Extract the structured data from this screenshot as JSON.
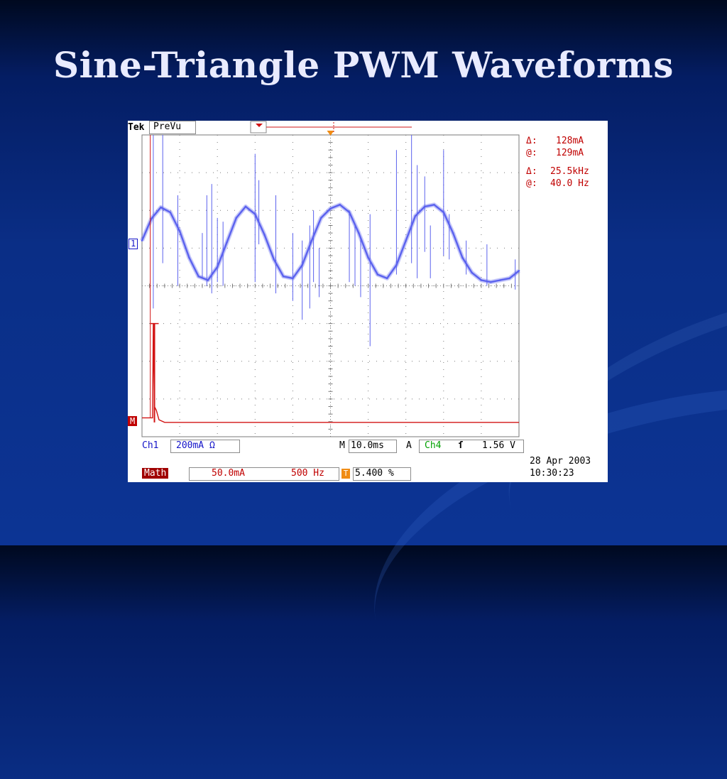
{
  "slide": {
    "title": "Sine-Triangle PWM Waveforms"
  },
  "colors": {
    "trace_ch1": "#5b62ee",
    "trace_math": "#d21414",
    "grid": "#7a7a7a",
    "text_blue": "#1414c8",
    "text_red": "#c00000",
    "text_green": "#00a000"
  },
  "scope": {
    "brand": "Tek",
    "mode": "PreVu",
    "cursor1": {
      "delta_label": "Δ:",
      "delta_value": "128mA",
      "at_label": "@:",
      "at_value": "129mA"
    },
    "cursor2": {
      "delta_label": "Δ:",
      "delta_value": "25.5kHz",
      "at_label": "@:",
      "at_value": "40.0 Hz"
    },
    "ch1_marker": "1",
    "math_marker": "M",
    "ch1_label": "Ch1",
    "ch1_scale": "200mA Ω",
    "timebase_label": "M",
    "timebase_value": "10.0ms",
    "trigger_mode": "A",
    "trigger_channel": "Ch4",
    "trigger_slope": "ſ",
    "trigger_level": "1.56 V",
    "math_label": "Math",
    "math_scale": "50.0mA",
    "math_freq": "500 Hz",
    "trigger_position_icon": "T",
    "trigger_position": "5.400 %",
    "date": "28 Apr 2003",
    "time": "10:30:23"
  },
  "chart_data": {
    "type": "line",
    "grid": true,
    "series": [
      {
        "description_note": "",
        "name": "",
        "x_div": [
          0,
          0.25,
          0.5,
          0.75,
          1.0,
          1.25,
          1.5,
          1.75,
          2.0,
          2.25,
          2.5,
          2.75,
          3.0,
          3.25,
          3.5,
          3.75,
          4.0,
          4.25,
          4.5,
          4.75,
          5.0,
          5.25,
          5.5,
          5.75,
          6.0,
          6.25,
          6.5,
          6.75,
          7.0,
          7.25,
          7.5,
          7.75,
          8.0,
          8.25,
          8.5,
          8.75,
          9.0,
          9.25,
          9.5,
          9.75,
          10.0
        ],
        "y_div": [
          1.2,
          1.78,
          2.08,
          1.95,
          1.45,
          0.75,
          0.25,
          0.15,
          0.5,
          1.15,
          1.8,
          2.1,
          1.9,
          1.35,
          0.7,
          0.25,
          0.2,
          0.55,
          1.2,
          1.8,
          2.05,
          2.15,
          1.95,
          1.4,
          0.75,
          0.3,
          0.2,
          0.55,
          1.2,
          1.85,
          2.1,
          2.15,
          1.95,
          1.4,
          0.75,
          0.35,
          0.15,
          0.1,
          0.15,
          0.2,
          0.4
        ]
      },
      {
        "name": "",
        "x_div": [
          0,
          0.15,
          0.28,
          0.3,
          0.33,
          0.38,
          0.45,
          0.6,
          1.0,
          2.0,
          4.0,
          6.0,
          8.0,
          10.0
        ],
        "y_div": [
          -3.5,
          -3.5,
          -3.5,
          -1.0,
          -3.2,
          -3.3,
          -3.55,
          -3.62,
          -3.62,
          -3.62,
          -3.62,
          -3.62,
          -3.62,
          -3.62
        ]
      }
    ],
    "ch1_spikes": [
      {
        "x_div": 0.3,
        "top": 4.0,
        "bottom": -0.6
      },
      {
        "x_div": 0.55,
        "top": 4.0,
        "bottom": 0.6
      },
      {
        "x_div": 0.95,
        "top": 2.4,
        "bottom": 0.0
      },
      {
        "x_div": 1.6,
        "top": 1.4,
        "bottom": 0.2
      },
      {
        "x_div": 1.72,
        "top": 2.4,
        "bottom": 0.0
      },
      {
        "x_div": 1.85,
        "top": 2.7,
        "bottom": -0.2
      },
      {
        "x_div": 2.0,
        "top": 1.8,
        "bottom": 0.1
      },
      {
        "x_div": 2.15,
        "top": 1.7,
        "bottom": 0.0
      },
      {
        "x_div": 3.0,
        "top": 3.5,
        "bottom": 0.1
      },
      {
        "x_div": 3.1,
        "top": 2.8,
        "bottom": 1.1
      },
      {
        "x_div": 3.55,
        "top": 2.4,
        "bottom": -0.2
      },
      {
        "x_div": 4.0,
        "top": 1.4,
        "bottom": -0.4
      },
      {
        "x_div": 4.25,
        "top": 1.2,
        "bottom": -0.9
      },
      {
        "x_div": 4.45,
        "top": 1.6,
        "bottom": -0.6
      },
      {
        "x_div": 4.55,
        "top": 2.0,
        "bottom": 0.1
      },
      {
        "x_div": 4.7,
        "top": 1.0,
        "bottom": -0.3
      },
      {
        "x_div": 5.5,
        "top": 2.0,
        "bottom": 0.1
      },
      {
        "x_div": 5.65,
        "top": 1.6,
        "bottom": 0.0
      },
      {
        "x_div": 5.8,
        "top": 1.3,
        "bottom": -0.3
      },
      {
        "x_div": 6.05,
        "top": 1.9,
        "bottom": -1.6
      },
      {
        "x_div": 6.75,
        "top": 3.6,
        "bottom": 0.3
      },
      {
        "x_div": 7.15,
        "top": 4.0,
        "bottom": 0.6
      },
      {
        "x_div": 7.3,
        "top": 3.2,
        "bottom": 0.2
      },
      {
        "x_div": 7.5,
        "top": 2.9,
        "bottom": 0.9
      },
      {
        "x_div": 7.65,
        "top": 1.6,
        "bottom": 0.2
      },
      {
        "x_div": 8.0,
        "top": 3.6,
        "bottom": 0.8
      },
      {
        "x_div": 8.15,
        "top": 1.9,
        "bottom": 0.7
      },
      {
        "x_div": 8.6,
        "top": 1.2,
        "bottom": 0.3
      },
      {
        "x_div": 9.15,
        "top": 1.1,
        "bottom": 0.0
      },
      {
        "x_div": 9.9,
        "top": 0.7,
        "bottom": -0.1
      }
    ],
    "math_spike": {
      "x_div": 0.33,
      "top": -1.0,
      "bottom": -3.62
    },
    "xlim": [
      0,
      10
    ],
    "ylim": [
      -4,
      4
    ]
  }
}
